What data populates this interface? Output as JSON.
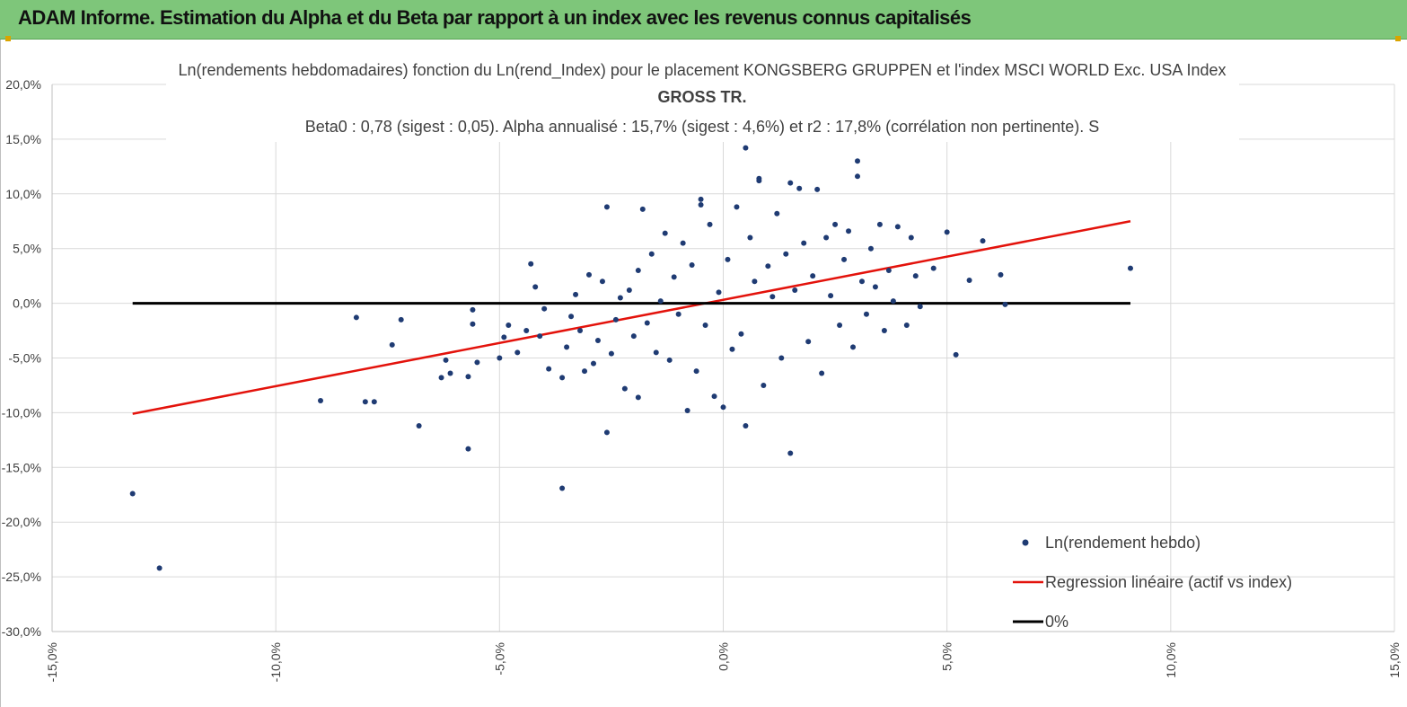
{
  "header": {
    "title": "ADAM Informe. Estimation du Alpha et du Beta par rapport à un index avec les revenus connus capitalisés"
  },
  "chart_data": {
    "type": "scatter",
    "title_lines": [
      "Ln(rendements hebdomadaires) fonction du Ln(rend_Index) pour le placement KONGSBERG GRUPPEN et l'index MSCI WORLD Exc. USA Index",
      "GROSS TR.",
      "Beta0 : 0,78 (sigest : 0,05). Alpha annualisé : 15,7% (sigest : 4,6%) et r2 : 17,8% (corrélation non pertinente). S"
    ],
    "xlim": [
      -0.15,
      0.15
    ],
    "ylim": [
      -0.3,
      0.2
    ],
    "x_ticks": [
      "-15,0%",
      "-10,0%",
      "-5,0%",
      "0,0%",
      "5,0%",
      "10,0%",
      "15,0%"
    ],
    "y_ticks": [
      "20,0%",
      "15,0%",
      "10,0%",
      "5,0%",
      "0,0%",
      "-5,0%",
      "-10,0%",
      "-15,0%",
      "-20,0%",
      "-25,0%",
      "-30,0%"
    ],
    "legend": {
      "position": "bottom-right",
      "items": [
        {
          "label": "Ln(rendement hebdo)",
          "kind": "marker",
          "color": "#1f3b73"
        },
        {
          "label": "Regression linéaire (actif vs index)",
          "kind": "line",
          "color": "#e3120b"
        },
        {
          "label": "0%",
          "kind": "line",
          "color": "#000000"
        }
      ]
    },
    "series": [
      {
        "name": "Ln(rendement hebdo)",
        "kind": "scatter",
        "color": "#1f3b73",
        "points": [
          [
            -0.132,
            -0.174
          ],
          [
            -0.126,
            -0.242
          ],
          [
            -0.09,
            -0.089
          ],
          [
            -0.082,
            -0.013
          ],
          [
            -0.08,
            -0.09
          ],
          [
            -0.078,
            -0.09
          ],
          [
            -0.074,
            -0.038
          ],
          [
            -0.072,
            -0.015
          ],
          [
            -0.068,
            -0.112
          ],
          [
            -0.063,
            -0.068
          ],
          [
            -0.062,
            -0.052
          ],
          [
            -0.061,
            -0.064
          ],
          [
            -0.057,
            -0.133
          ],
          [
            -0.057,
            -0.067
          ],
          [
            -0.056,
            -0.019
          ],
          [
            -0.056,
            -0.006
          ],
          [
            -0.055,
            -0.054
          ],
          [
            -0.05,
            -0.05
          ],
          [
            -0.049,
            -0.031
          ],
          [
            -0.048,
            -0.02
          ],
          [
            -0.046,
            -0.045
          ],
          [
            -0.044,
            -0.025
          ],
          [
            -0.043,
            0.036
          ],
          [
            -0.042,
            0.015
          ],
          [
            -0.041,
            -0.03
          ],
          [
            -0.04,
            -0.005
          ],
          [
            -0.039,
            -0.06
          ],
          [
            -0.036,
            -0.169
          ],
          [
            -0.036,
            -0.068
          ],
          [
            -0.035,
            -0.04
          ],
          [
            -0.034,
            -0.012
          ],
          [
            -0.033,
            0.008
          ],
          [
            -0.032,
            -0.025
          ],
          [
            -0.031,
            -0.062
          ],
          [
            -0.03,
            0.026
          ],
          [
            -0.029,
            -0.055
          ],
          [
            -0.028,
            -0.034
          ],
          [
            -0.027,
            0.02
          ],
          [
            -0.026,
            -0.118
          ],
          [
            -0.026,
            0.088
          ],
          [
            -0.025,
            -0.046
          ],
          [
            -0.024,
            -0.015
          ],
          [
            -0.023,
            0.005
          ],
          [
            -0.022,
            -0.078
          ],
          [
            -0.021,
            0.012
          ],
          [
            -0.02,
            -0.03
          ],
          [
            -0.019,
            -0.086
          ],
          [
            -0.019,
            0.03
          ],
          [
            -0.018,
            0.086
          ],
          [
            -0.017,
            -0.018
          ],
          [
            -0.016,
            0.045
          ],
          [
            -0.015,
            -0.045
          ],
          [
            -0.014,
            0.002
          ],
          [
            -0.013,
            0.064
          ],
          [
            -0.012,
            -0.052
          ],
          [
            -0.011,
            0.024
          ],
          [
            -0.01,
            -0.01
          ],
          [
            -0.009,
            0.055
          ],
          [
            -0.008,
            -0.098
          ],
          [
            -0.007,
            0.035
          ],
          [
            -0.006,
            -0.062
          ],
          [
            -0.005,
            0.095
          ],
          [
            -0.005,
            0.09
          ],
          [
            -0.004,
            -0.02
          ],
          [
            -0.003,
            0.072
          ],
          [
            -0.002,
            -0.085
          ],
          [
            -0.001,
            0.01
          ],
          [
            0.0,
            -0.095
          ],
          [
            0.001,
            0.04
          ],
          [
            0.002,
            -0.042
          ],
          [
            0.003,
            0.088
          ],
          [
            0.004,
            -0.028
          ],
          [
            0.005,
            0.142
          ],
          [
            0.005,
            -0.112
          ],
          [
            0.006,
            0.06
          ],
          [
            0.007,
            0.02
          ],
          [
            0.008,
            0.114
          ],
          [
            0.008,
            0.112
          ],
          [
            0.009,
            -0.075
          ],
          [
            0.01,
            0.034
          ],
          [
            0.011,
            0.006
          ],
          [
            0.012,
            0.082
          ],
          [
            0.013,
            -0.05
          ],
          [
            0.014,
            0.045
          ],
          [
            0.015,
            -0.137
          ],
          [
            0.015,
            0.11
          ],
          [
            0.016,
            0.012
          ],
          [
            0.017,
            0.105
          ],
          [
            0.018,
            0.055
          ],
          [
            0.019,
            -0.035
          ],
          [
            0.02,
            0.025
          ],
          [
            0.021,
            0.104
          ],
          [
            0.022,
            -0.064
          ],
          [
            0.023,
            0.06
          ],
          [
            0.024,
            0.007
          ],
          [
            0.025,
            0.072
          ],
          [
            0.026,
            -0.02
          ],
          [
            0.027,
            0.04
          ],
          [
            0.028,
            0.066
          ],
          [
            0.029,
            -0.04
          ],
          [
            0.03,
            0.13
          ],
          [
            0.03,
            0.116
          ],
          [
            0.031,
            0.02
          ],
          [
            0.032,
            -0.01
          ],
          [
            0.033,
            0.05
          ],
          [
            0.034,
            0.015
          ],
          [
            0.035,
            0.072
          ],
          [
            0.036,
            -0.025
          ],
          [
            0.037,
            0.03
          ],
          [
            0.038,
            0.002
          ],
          [
            0.039,
            0.07
          ],
          [
            0.041,
            -0.02
          ],
          [
            0.042,
            0.06
          ],
          [
            0.043,
            0.025
          ],
          [
            0.044,
            -0.003
          ],
          [
            0.047,
            0.032
          ],
          [
            0.05,
            0.065
          ],
          [
            0.052,
            -0.047
          ],
          [
            0.055,
            0.021
          ],
          [
            0.058,
            0.057
          ],
          [
            0.062,
            0.026
          ],
          [
            0.063,
            -0.001
          ],
          [
            0.091,
            0.032
          ]
        ]
      },
      {
        "name": "Regression linéaire (actif vs index)",
        "kind": "line",
        "color": "#e3120b",
        "points": [
          [
            -0.132,
            -0.101
          ],
          [
            0.091,
            0.075
          ]
        ]
      },
      {
        "name": "0%",
        "kind": "line",
        "color": "#000000",
        "points": [
          [
            -0.132,
            0.0
          ],
          [
            0.091,
            0.0
          ]
        ]
      }
    ]
  }
}
